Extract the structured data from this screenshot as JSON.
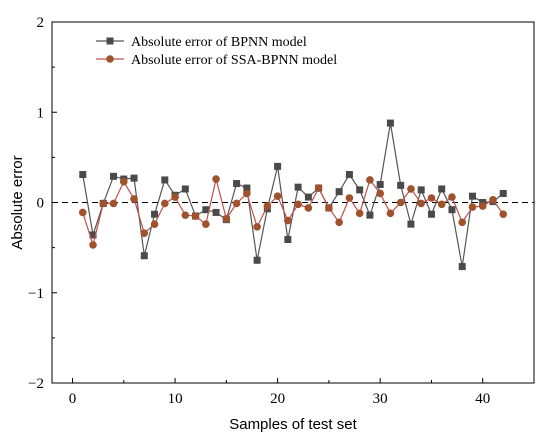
{
  "chart_data": {
    "type": "line",
    "xlabel": "Samples of test set",
    "ylabel": "Absolute error",
    "xlim": [
      -2,
      45
    ],
    "ylim": [
      -2,
      2
    ],
    "xticks": [
      0,
      10,
      20,
      30,
      40
    ],
    "yticks": [
      -2,
      -1,
      0,
      1,
      2
    ],
    "xtick_labels": [
      "0",
      "10",
      "20",
      "30",
      "40"
    ],
    "ytick_labels": [
      "−2",
      "−1",
      "0",
      "1",
      "2"
    ],
    "reference_line": 0,
    "legend_position": "top-left",
    "x": [
      1,
      2,
      3,
      4,
      5,
      6,
      7,
      8,
      9,
      10,
      11,
      12,
      13,
      14,
      15,
      16,
      17,
      18,
      19,
      20,
      21,
      22,
      23,
      24,
      25,
      26,
      27,
      28,
      29,
      30,
      31,
      32,
      33,
      34,
      35,
      36,
      37,
      38,
      39,
      40,
      41,
      42
    ],
    "series": [
      {
        "name": "Absolute error of  BPNN model",
        "marker": "square",
        "line_color": "#555555",
        "marker_color": "#4a4a4a",
        "values": [
          0.31,
          -0.36,
          -0.01,
          0.29,
          0.26,
          0.27,
          -0.59,
          -0.13,
          0.25,
          0.08,
          0.15,
          -0.15,
          -0.08,
          -0.11,
          -0.19,
          0.21,
          0.16,
          -0.64,
          -0.07,
          0.4,
          -0.41,
          0.17,
          0.06,
          0.16,
          -0.06,
          0.12,
          0.31,
          0.14,
          -0.14,
          0.2,
          0.88,
          0.19,
          -0.24,
          0.14,
          -0.13,
          0.15,
          -0.08,
          -0.71,
          0.07,
          0.0,
          0.01,
          0.1
        ]
      },
      {
        "name": "Absolute error of SSA-BPNN model",
        "marker": "circle",
        "line_color": "#c0504d",
        "marker_color": "#a0522d",
        "values": [
          -0.11,
          -0.47,
          -0.01,
          -0.01,
          0.23,
          0.04,
          -0.34,
          -0.24,
          -0.01,
          0.06,
          -0.14,
          -0.15,
          -0.24,
          0.26,
          -0.18,
          -0.01,
          0.1,
          -0.27,
          -0.04,
          0.07,
          -0.2,
          -0.02,
          -0.06,
          0.16,
          -0.06,
          -0.22,
          0.05,
          -0.12,
          0.25,
          0.1,
          -0.12,
          0.0,
          0.15,
          -0.01,
          0.05,
          -0.02,
          0.06,
          -0.22,
          -0.05,
          -0.04,
          0.03,
          -0.13
        ]
      }
    ]
  }
}
